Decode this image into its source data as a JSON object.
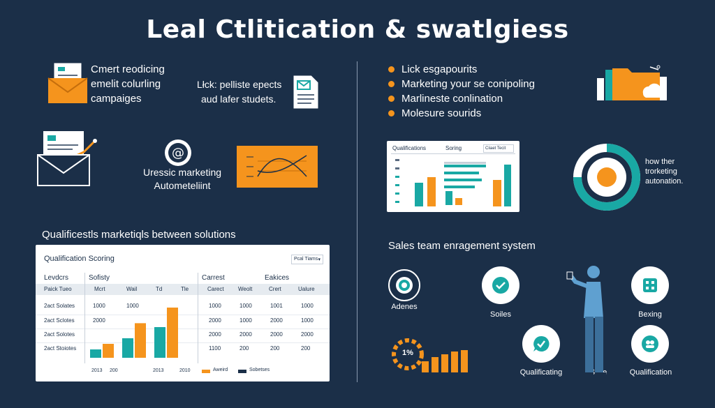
{
  "title": "Leal Ctlitication & swatlgiess",
  "left_top": {
    "item1": [
      "Cmert reodicing",
      "emelit colurling",
      "campaiges"
    ],
    "item2": [
      "Lłck: pelliste epects",
      "aud lafer studets."
    ],
    "item3": [
      "Uressic marketing",
      "Autometeliint"
    ]
  },
  "table": {
    "heading": "Qualificestls marketiqls between solutions",
    "card_title": "Qualification Scoring",
    "dropdown": "Pcal Tiams",
    "col_groups": [
      "Levdcrs",
      "Sofisty",
      "Carrest",
      "Eakices"
    ],
    "sub_headers": [
      "Paick Tueo",
      "Mcrt",
      "Wail",
      "Td",
      "Tle",
      "Carect",
      "Weolt",
      "Crert",
      "Ualure"
    ],
    "rows": [
      {
        "label": "2act Solates",
        "v1": "1000",
        "v2": "1000",
        "v3": "1000",
        "v4": "1000",
        "v5": "1001",
        "v6": "1000"
      },
      {
        "label": "2act Sclotes",
        "v1": "2000",
        "v2": "",
        "v3": "2000",
        "v4": "1000",
        "v5": "2000",
        "v6": "1000"
      },
      {
        "label": "2act Solotes",
        "v1": "",
        "v2": "",
        "v3": "2000",
        "v4": "2000",
        "v5": "2000",
        "v6": "2000"
      },
      {
        "label": "2act Stoiotes",
        "v1": "",
        "v2": "",
        "v3": "1100",
        "v4": "200",
        "v5": "200",
        "v6": "200"
      }
    ],
    "xticks": [
      "2013",
      "200",
      "2013",
      "2010"
    ],
    "legend": [
      "Aweird",
      "Sobetses"
    ],
    "bars": [
      {
        "teal": 0.15,
        "orange": 0.25
      },
      {
        "teal": 0.35,
        "orange": 0.62
      },
      {
        "teal": 0.55,
        "orange": 0.9
      }
    ]
  },
  "right_top": {
    "bullets": [
      "Lick esgapourits",
      "Marketing your se conipoling",
      "Marlineste conlination",
      "Molesure sourids"
    ],
    "chart_title": "Qualifications",
    "chart_sub": "Soring",
    "chart_dropdown": "Ciiaet Tecit",
    "donut_text": [
      "how ther",
      "trorketing",
      "autonation."
    ]
  },
  "right_bottom": {
    "heading": "Sales team enragement system",
    "nodes": [
      "Adenes",
      "Soiles",
      "Bexing",
      "Qualificating",
      "Solle",
      "Qualification"
    ],
    "percent": "1%"
  },
  "colors": {
    "navy": "#1b2f48",
    "orange": "#f5941d",
    "teal": "#19a8a4",
    "white": "#ffffff"
  }
}
